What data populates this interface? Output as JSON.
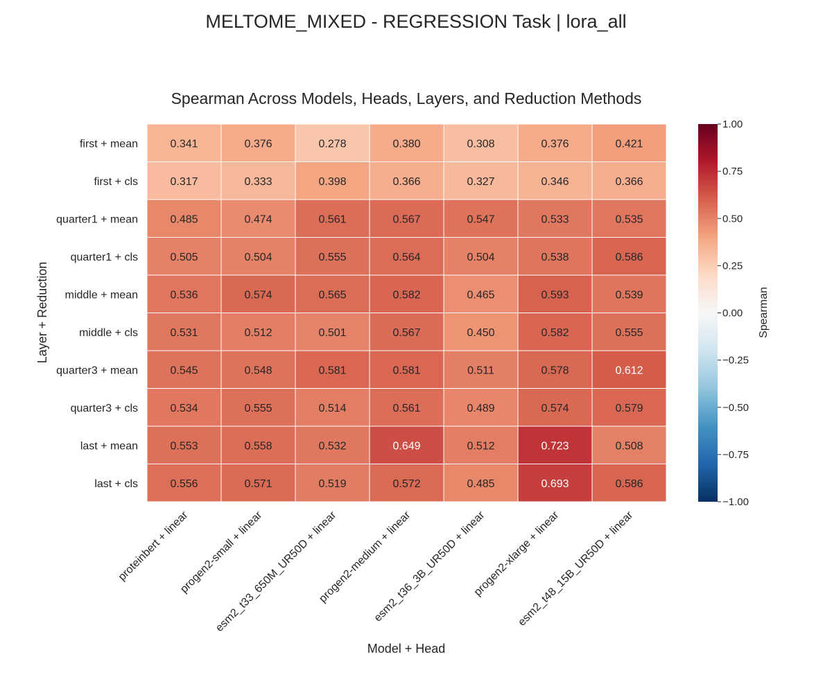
{
  "suptitle": "MELTOME_MIXED - REGRESSION Task | lora_all",
  "chart_data": {
    "type": "heatmap",
    "title": "Spearman Across Models, Heads, Layers, and Reduction Methods",
    "xlabel": "Model + Head",
    "ylabel": "Layer + Reduction",
    "x_categories": [
      "proteinbert + linear",
      "progen2-small + linear",
      "esm2_t33_650M_UR50D + linear",
      "progen2-medium + linear",
      "esm2_t36_3B_UR50D + linear",
      "progen2-xlarge + linear",
      "esm2_t48_15B_UR50D + linear"
    ],
    "y_categories": [
      "first + mean",
      "first + cls",
      "quarter1 + mean",
      "quarter1 + cls",
      "middle + mean",
      "middle + cls",
      "quarter3 + mean",
      "quarter3 + cls",
      "last + mean",
      "last + cls"
    ],
    "values": [
      [
        0.341,
        0.376,
        0.278,
        0.38,
        0.308,
        0.376,
        0.421
      ],
      [
        0.317,
        0.333,
        0.398,
        0.366,
        0.327,
        0.346,
        0.366
      ],
      [
        0.485,
        0.474,
        0.561,
        0.567,
        0.547,
        0.533,
        0.535
      ],
      [
        0.505,
        0.504,
        0.555,
        0.564,
        0.504,
        0.538,
        0.586
      ],
      [
        0.536,
        0.574,
        0.565,
        0.582,
        0.465,
        0.593,
        0.539
      ],
      [
        0.531,
        0.512,
        0.501,
        0.567,
        0.45,
        0.582,
        0.555
      ],
      [
        0.545,
        0.548,
        0.581,
        0.581,
        0.511,
        0.578,
        0.612
      ],
      [
        0.534,
        0.555,
        0.514,
        0.561,
        0.489,
        0.574,
        0.579
      ],
      [
        0.553,
        0.558,
        0.532,
        0.649,
        0.512,
        0.723,
        0.508
      ],
      [
        0.556,
        0.571,
        0.519,
        0.572,
        0.485,
        0.693,
        0.586
      ]
    ],
    "value_format_decimals": 3,
    "colorbar": {
      "label": "Spearman",
      "vmin": -1.0,
      "vmax": 1.0,
      "ticks": [
        1.0,
        0.75,
        0.5,
        0.25,
        0.0,
        -0.25,
        -0.5,
        -0.75,
        -1.0
      ],
      "tick_labels": [
        "1.00",
        "0.75",
        "0.50",
        "0.25",
        "0.00",
        "−0.25",
        "−0.50",
        "−0.75",
        "−1.00"
      ],
      "colormap": "RdBu_r",
      "colormap_stops": [
        "#053061",
        "#2166ac",
        "#4393c3",
        "#92c5de",
        "#d1e5f0",
        "#f7f7f7",
        "#fddbc7",
        "#f4a582",
        "#d6604d",
        "#b2182b",
        "#67001f"
      ]
    }
  }
}
